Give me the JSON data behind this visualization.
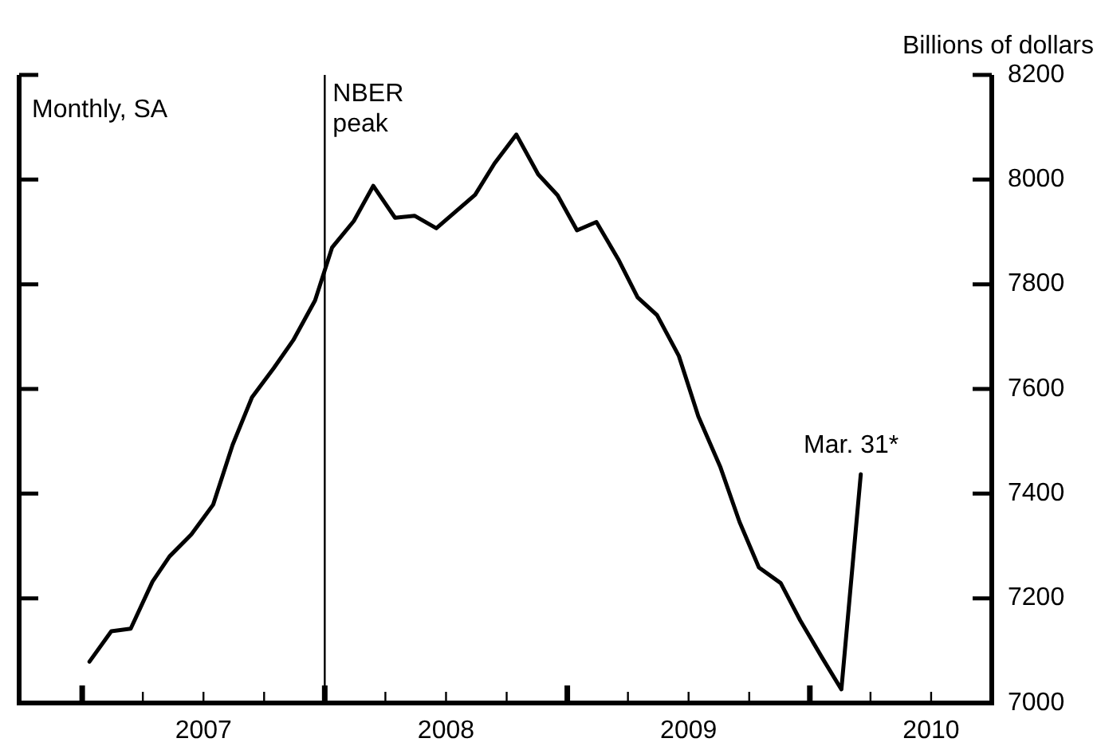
{
  "chart_data": {
    "type": "line",
    "ylabel": "Billions of dollars",
    "annotations": [
      "Monthly, SA",
      {
        "text": "Mar. 31*",
        "x": 2010.21,
        "y": 7437
      }
    ],
    "x": [
      2007.03,
      2007.12,
      2007.2,
      2007.29,
      2007.36,
      2007.45,
      2007.54,
      2007.62,
      2007.7,
      2007.79,
      2007.87,
      2007.96,
      2008.03,
      2008.12,
      2008.2,
      2008.29,
      2008.37,
      2008.46,
      2008.54,
      2008.62,
      2008.7,
      2008.79,
      2008.88,
      2008.96,
      2009.04,
      2009.12,
      2009.21,
      2009.29,
      2009.37,
      2009.46,
      2009.54,
      2009.63,
      2009.71,
      2009.79,
      2009.88,
      2009.96,
      2010.05,
      2010.13,
      2010.21
    ],
    "series": [
      {
        "color": "#000000",
        "values": [
          7079,
          7137,
          7142,
          7232,
          7280,
          7322,
          7379,
          7493,
          7584,
          7640,
          7693,
          7769,
          7870,
          7921,
          7988,
          7927,
          7931,
          7907,
          7939,
          7971,
          8031,
          8086,
          8010,
          7970,
          7903,
          7919,
          7848,
          7775,
          7741,
          7663,
          7548,
          7452,
          7346,
          7259,
          7229,
          7158,
          7087,
          7026,
          7437
        ]
      }
    ],
    "xlim": [
      2006.74,
      2010.75
    ],
    "xticks": [
      {
        "value": 2007,
        "label": null
      },
      {
        "value": 2007.25,
        "label": null
      },
      {
        "value": 2007.5,
        "label": "2007"
      },
      {
        "value": 2007.75,
        "label": null
      },
      {
        "value": 2008,
        "label": null
      },
      {
        "value": 2008.25,
        "label": null
      },
      {
        "value": 2008.5,
        "label": "2008"
      },
      {
        "value": 2008.75,
        "label": null
      },
      {
        "value": 2009,
        "label": null
      },
      {
        "value": 2009.25,
        "label": null
      },
      {
        "value": 2009.5,
        "label": "2009"
      },
      {
        "value": 2009.75,
        "label": null
      },
      {
        "value": 2010,
        "label": null
      },
      {
        "value": 2010.25,
        "label": null
      },
      {
        "value": 2010.5,
        "label": "2010"
      }
    ],
    "ylim": [
      7000,
      8200
    ],
    "yticks": [
      7000,
      7200,
      7400,
      7600,
      7800,
      8000,
      8200
    ],
    "ref_lines": [
      {
        "axis": "x",
        "value": 2008,
        "label": "NBER peak"
      }
    ],
    "grid": false,
    "legend": false,
    "marker": "none",
    "line_style": "solid"
  }
}
